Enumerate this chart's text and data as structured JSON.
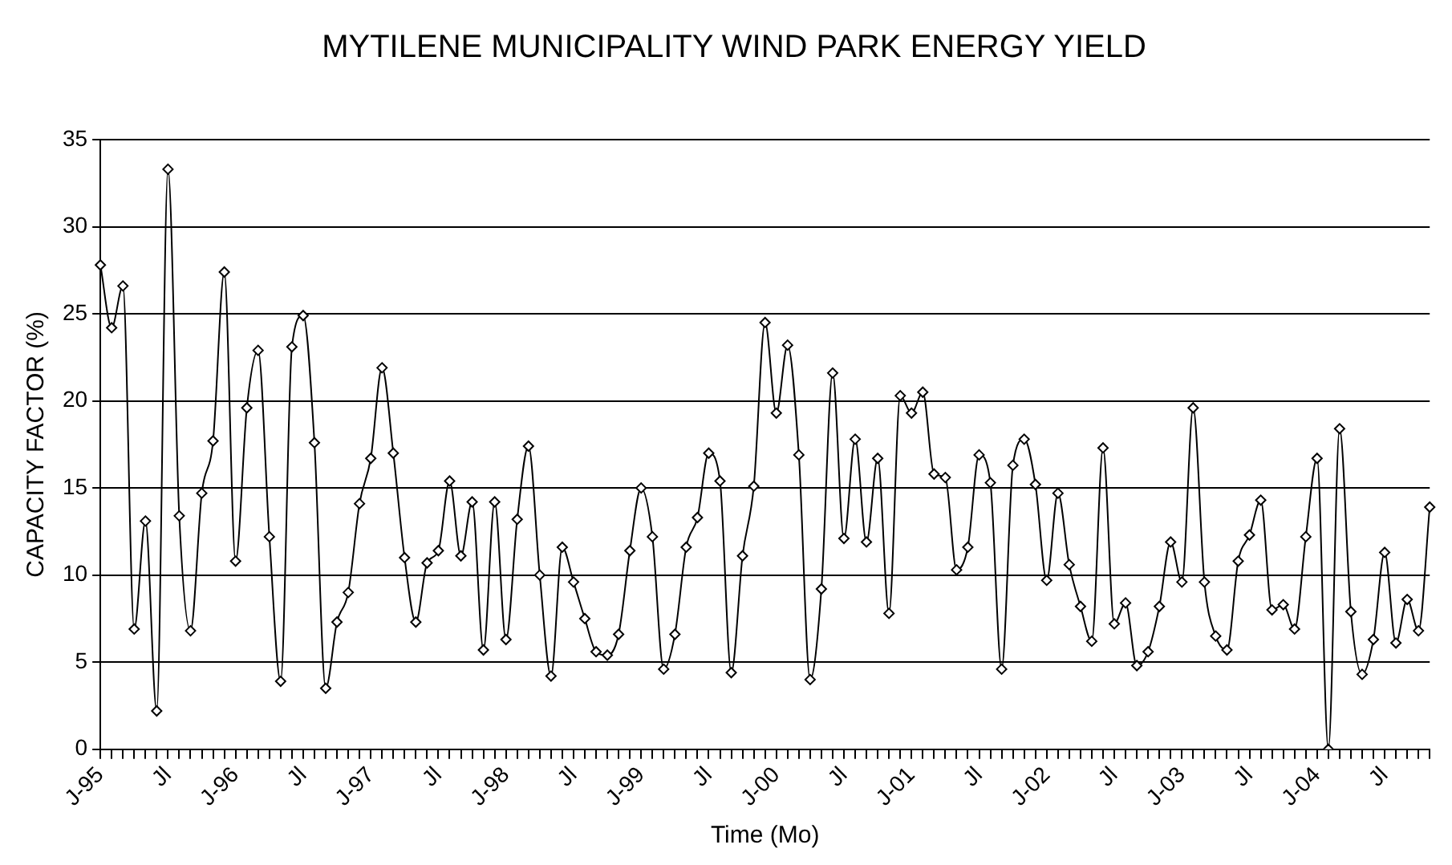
{
  "chart_data": {
    "type": "line",
    "title": "MYTILENE MUNICIPALITY WIND PARK ENERGY YIELD",
    "xlabel": "Time (Mo)",
    "ylabel": "CAPACITY FACTOR (%)",
    "categories": [
      "J-95",
      null,
      null,
      null,
      null,
      null,
      "Jl",
      null,
      null,
      null,
      null,
      null,
      "J-96",
      null,
      null,
      null,
      null,
      null,
      "Jl",
      null,
      null,
      null,
      null,
      null,
      "J-97",
      null,
      null,
      null,
      null,
      null,
      "Jl",
      null,
      null,
      null,
      null,
      null,
      "J-98",
      null,
      null,
      null,
      null,
      null,
      "Jl",
      null,
      null,
      null,
      null,
      null,
      "J-99",
      null,
      null,
      null,
      null,
      null,
      "Jl",
      null,
      null,
      null,
      null,
      null,
      "J-00",
      null,
      null,
      null,
      null,
      null,
      "Jl",
      null,
      null,
      null,
      null,
      null,
      "J-01",
      null,
      null,
      null,
      null,
      null,
      "Jl",
      null,
      null,
      null,
      null,
      null,
      "J-02",
      null,
      null,
      null,
      null,
      null,
      "Jl",
      null,
      null,
      null,
      null,
      null,
      "J-03",
      null,
      null,
      null,
      null,
      null,
      "Jl",
      null,
      null,
      null,
      null,
      null,
      "J-04",
      null,
      null,
      null,
      null,
      null,
      "Jl",
      null,
      null,
      null,
      null
    ],
    "series": [
      {
        "color": "#000000",
        "values": [
          27.8,
          24.2,
          26.6,
          6.9,
          13.1,
          2.2,
          33.3,
          13.4,
          6.8,
          14.7,
          17.7,
          27.4,
          10.8,
          19.6,
          22.9,
          12.2,
          3.9,
          23.1,
          24.9,
          17.6,
          3.5,
          7.3,
          9.0,
          14.1,
          16.7,
          21.9,
          17.0,
          11.0,
          7.3,
          10.7,
          11.4,
          15.4,
          11.1,
          14.2,
          5.7,
          14.2,
          6.3,
          13.2,
          17.4,
          10.0,
          4.2,
          11.6,
          9.6,
          7.5,
          5.6,
          5.4,
          6.6,
          11.4,
          15.0,
          12.2,
          4.6,
          6.6,
          11.6,
          13.3,
          17.0,
          15.4,
          4.4,
          11.1,
          15.1,
          24.5,
          19.3,
          23.2,
          16.9,
          4.0,
          9.2,
          21.6,
          12.1,
          17.8,
          11.9,
          16.7,
          7.8,
          20.3,
          19.3,
          20.5,
          15.8,
          15.6,
          10.3,
          11.6,
          16.9,
          15.3,
          4.6,
          16.3,
          17.8,
          15.2,
          9.7,
          14.7,
          10.6,
          8.2,
          6.2,
          17.3,
          7.2,
          8.4,
          4.8,
          5.6,
          8.2,
          11.9,
          9.6,
          19.6,
          9.6,
          6.5,
          5.7,
          10.8,
          12.3,
          14.3,
          8.0,
          8.3,
          6.9,
          12.2,
          16.7,
          0,
          18.4,
          7.9,
          4.3,
          6.3,
          11.3,
          6.1,
          8.6,
          6.8,
          13.9
        ]
      }
    ],
    "ylim": [
      0,
      35
    ],
    "yticks": [
      0,
      5,
      10,
      15,
      20,
      25,
      30,
      35
    ],
    "grid": "y",
    "legend": false,
    "marker": "diamond",
    "line_style": "solid"
  }
}
